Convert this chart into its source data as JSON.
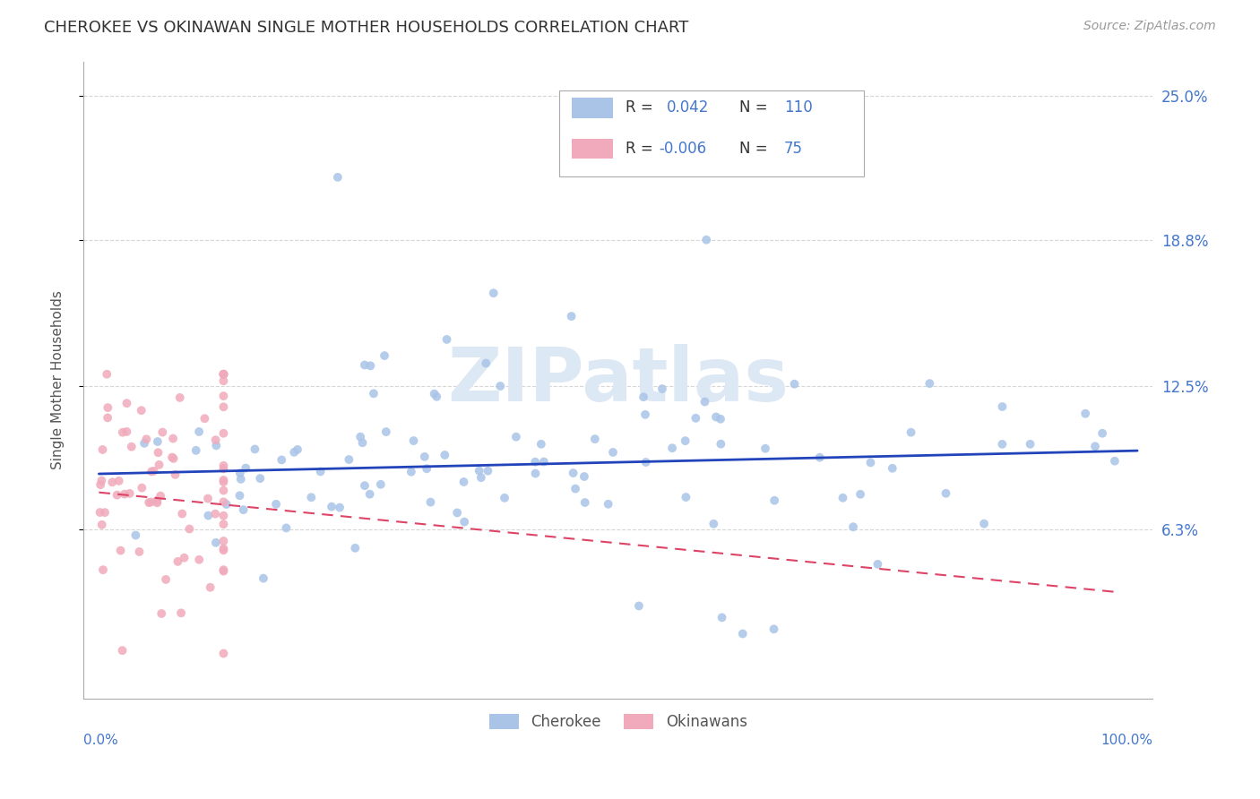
{
  "title": "CHEROKEE VS OKINAWAN SINGLE MOTHER HOUSEHOLDS CORRELATION CHART",
  "source": "Source: ZipAtlas.com",
  "ylabel": "Single Mother Households",
  "ytick_labels": [
    "6.3%",
    "12.5%",
    "18.8%",
    "25.0%"
  ],
  "ytick_values": [
    0.063,
    0.125,
    0.188,
    0.25
  ],
  "cherokee_color": "#aac4e8",
  "okinawan_color": "#f0aabb",
  "cherokee_line_color": "#2244bb",
  "okinawan_line_color": "#dd4466",
  "watermark": "ZIPatlas",
  "watermark_color": "#dde8f5",
  "background_color": "#ffffff",
  "grid_color": "#cccccc",
  "title_color": "#333333",
  "source_color": "#999999",
  "ylabel_color": "#555555",
  "tick_label_color": "#4477cc",
  "legend_r_color": "#333333",
  "legend_n_color": "#4477cc",
  "legend_val_color": "#4477cc"
}
